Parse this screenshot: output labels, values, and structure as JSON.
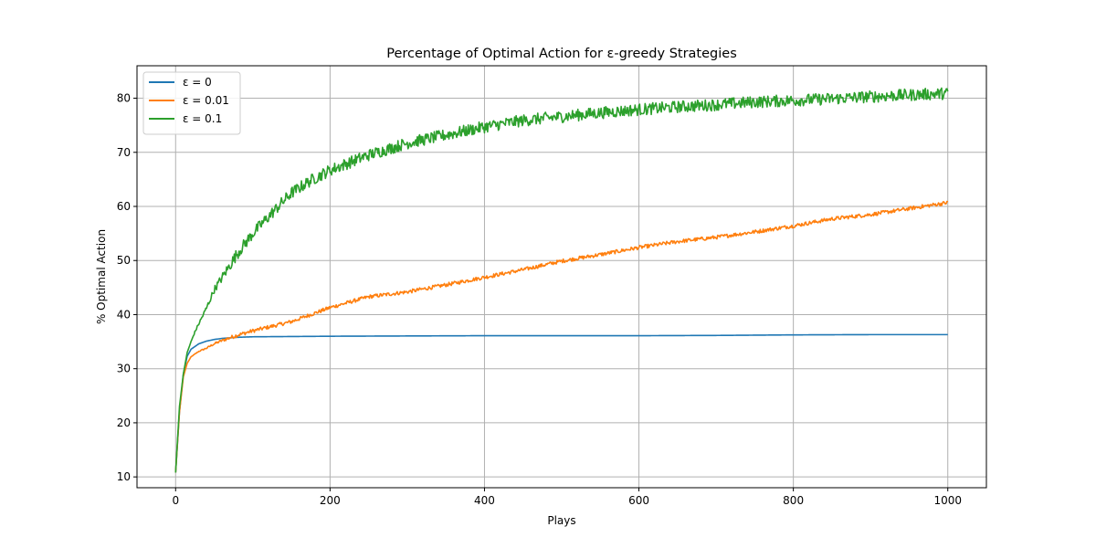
{
  "chart_data": {
    "type": "line",
    "title": "Percentage of Optimal Action for ε-greedy Strategies",
    "xlabel": "Plays",
    "ylabel": "% Optimal Action",
    "xlim": [
      -50,
      1050
    ],
    "ylim": [
      8,
      86
    ],
    "xticks": [
      0,
      200,
      400,
      600,
      800,
      1000
    ],
    "yticks": [
      10,
      20,
      30,
      40,
      50,
      60,
      70,
      80
    ],
    "grid": true,
    "legend_position": "top-left",
    "series": [
      {
        "name": "ε = 0",
        "color": "#1f77b4",
        "noise": 0,
        "x": [
          0,
          5,
          10,
          15,
          20,
          30,
          40,
          50,
          60,
          80,
          100,
          150,
          200,
          300,
          400,
          500,
          600,
          700,
          800,
          900,
          1000
        ],
        "y": [
          10.8,
          22,
          29,
          32.3,
          33.6,
          34.6,
          35.1,
          35.4,
          35.6,
          35.8,
          35.9,
          35.95,
          36.0,
          36.05,
          36.1,
          36.1,
          36.1,
          36.15,
          36.25,
          36.3,
          36.3
        ]
      },
      {
        "name": "ε = 0.01",
        "color": "#ff7f0e",
        "noise": 0.35,
        "x": [
          0,
          5,
          10,
          15,
          20,
          30,
          40,
          50,
          60,
          80,
          100,
          150,
          200,
          250,
          300,
          350,
          400,
          450,
          500,
          550,
          600,
          650,
          700,
          750,
          800,
          850,
          900,
          950,
          1000
        ],
        "y": [
          10.8,
          22,
          28.5,
          31,
          32.2,
          33.2,
          33.8,
          34.6,
          35.2,
          36.2,
          37.0,
          38.7,
          41.3,
          43.3,
          44.2,
          45.5,
          46.9,
          48.3,
          49.9,
          51.1,
          52.4,
          53.5,
          54.3,
          55.3,
          56.4,
          57.7,
          58.5,
          59.6,
          60.7
        ]
      },
      {
        "name": "ε = 0.1",
        "color": "#2ca02c",
        "noise": 1.1,
        "x": [
          0,
          5,
          10,
          15,
          20,
          25,
          30,
          40,
          50,
          60,
          80,
          100,
          125,
          150,
          175,
          200,
          250,
          300,
          350,
          400,
          450,
          500,
          550,
          600,
          650,
          700,
          750,
          800,
          850,
          900,
          950,
          1000
        ],
        "y": [
          10.8,
          23,
          29,
          33,
          35,
          36.8,
          38.3,
          41.2,
          44.6,
          46.8,
          51.3,
          55.0,
          58.8,
          62.5,
          64.8,
          66.7,
          69.5,
          71.7,
          73.2,
          74.7,
          75.9,
          76.6,
          77.3,
          77.9,
          78.4,
          78.8,
          79.3,
          79.6,
          79.9,
          80.3,
          80.6,
          80.9
        ]
      }
    ]
  }
}
